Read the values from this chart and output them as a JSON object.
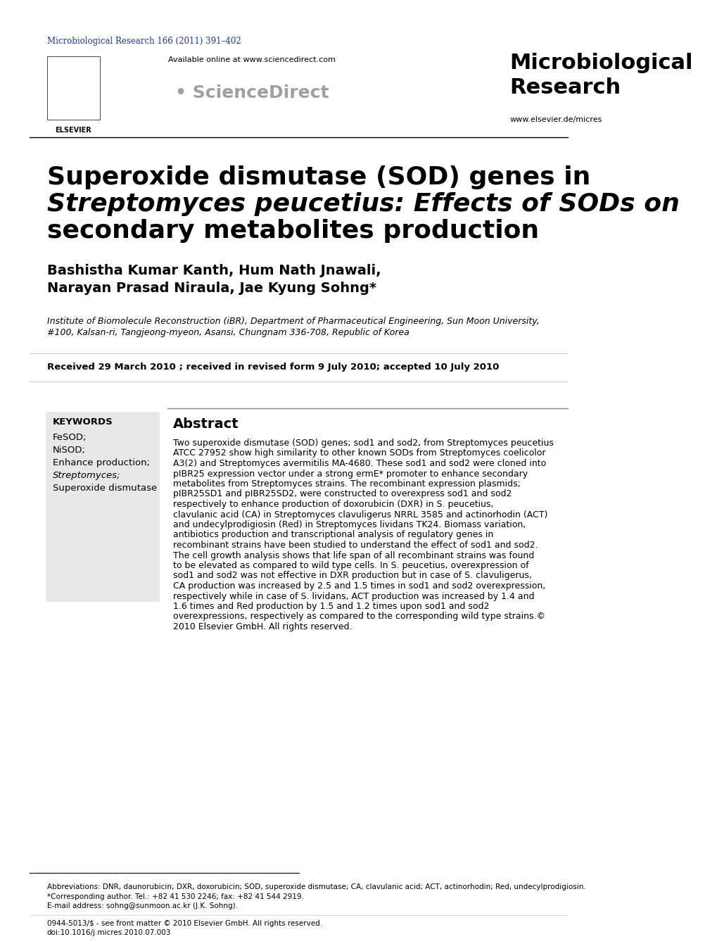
{
  "background_color": "#ffffff",
  "journal_ref_color": "#1a3a8c",
  "journal_ref": "Microbiological Research 166 (2011) 391–402",
  "journal_name_line1": "Microbiological",
  "journal_name_line2": "Research",
  "website": "www.elsevier.de/micres",
  "sciencedirect_text": "Available online at www.sciencedirect.com",
  "title_line1": "Superoxide dismutase (SOD) genes in",
  "title_line2": "Streptomyces peucetius: Effects of SODs on",
  "title_line3": "secondary metabolites production",
  "authors_line1": "Bashistha Kumar Kanth, Hum Nath Jnawali,",
  "authors_line2": "Narayan Prasad Niraula, Jae Kyung Sohng*",
  "affiliation_line1": "Institute of Biomolecule Reconstruction (iBR), Department of Pharmaceutical Engineering, Sun Moon University,",
  "affiliation_line2": "#100, Kalsan-ri, Tangjeong-myeon, Asansi, Chungnam 336-708, Republic of Korea",
  "received": "Received 29 March 2010 ; received in revised form 9 July 2010; accepted 10 July 2010",
  "keywords_title": "KEYWORDS",
  "keywords": [
    "FeSOD;",
    "NiSOD;",
    "Enhance production;",
    "Streptomyces;",
    "Superoxide dismutase"
  ],
  "keywords_italic": [
    false,
    false,
    false,
    true,
    false
  ],
  "abstract_title": "Abstract",
  "abstract_text": "Two superoxide dismutase (SOD) genes; sod1 and sod2, from Streptomyces peucetius ATCC 27952 show high similarity to other known SODs from Streptomyces coelicolor A3(2) and Streptomyces avermitilis MA-4680. These sod1 and sod2 were cloned into pIBR25 expression vector under a strong ermE* promoter to enhance secondary metabolites from Streptomyces strains. The recombinant expression plasmids; pIBR25SD1 and pIBR25SD2, were constructed to overexpress sod1 and sod2 respectively to enhance production of doxorubicin (DXR) in S. peucetius, clavulanic acid (CA) in Streptomyces clavuligerus NRRL 3585 and actinorhodin (ACT) and undecylprodigiosin (Red) in Streptomyces lividans TK24. Biomass variation, antibiotics production and transcriptional analysis of regulatory genes in recombinant strains have been studied to understand the effect of sod1 and sod2. The cell growth analysis shows that life span of all recombinant strains was found to be elevated as compared to wild type cells. In S. peucetius, overexpression of sod1 and sod2 was not effective in DXR production but in case of S. clavuligerus, CA production was increased by 2.5 and 1.5 times in sod1 and sod2 overexpression, respectively while in case of S. lividans, ACT production was increased by 1.4 and 1.6 times and Red production by 1.5 and 1.2 times upon sod1 and sod2 overexpressions, respectively as compared to the corresponding wild type strains.© 2010 Elsevier GmbH. All rights reserved.",
  "footer_abbrev": "Abbreviations: DNR, daunorubicin; DXR, doxorubicin; SOD, superoxide dismutase; CA, clavulanic acid; ACT, actinorhodin; Red, undecylprodigiosin.",
  "footer_corresponding": "*Corresponding author. Tel.: +82 41 530 2246; fax: +82 41 544 2919.",
  "footer_email": "E-mail address: sohng@sunmoon.ac.kr (J.K. Sohng).",
  "footer_issn": "0944-5013/$ - see front matter © 2010 Elsevier GmbH. All rights reserved.",
  "footer_doi": "doi:10.1016/j.micres.2010.07.003",
  "keywords_bg": "#e8e8e8"
}
